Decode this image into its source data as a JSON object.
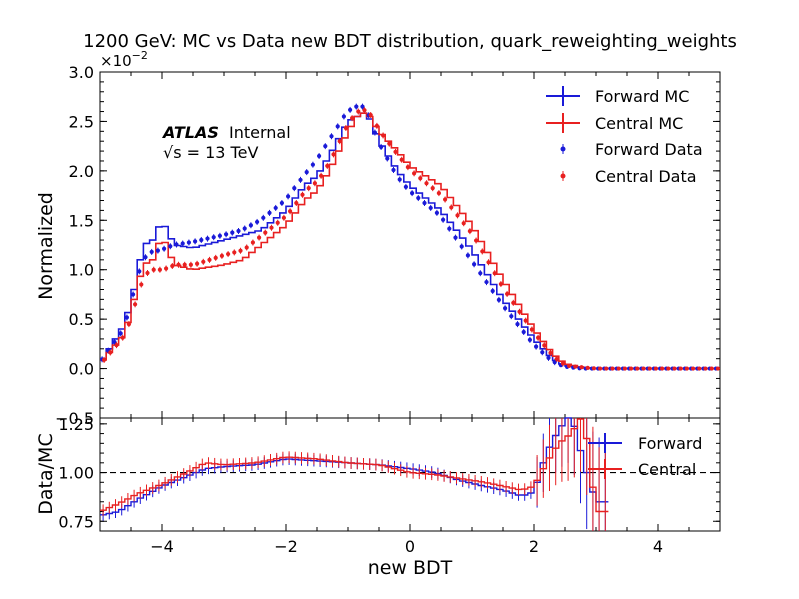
{
  "chart_data": [
    {
      "panel": "main",
      "type": "line",
      "title": "1200 GeV: MC vs Data new BDT distribution, quark_reweighting_weights",
      "ylabel": "Normalized",
      "xlim": [
        -5,
        5
      ],
      "ylim": [
        -0.5,
        3.0
      ],
      "y_scale_label": "×10",
      "y_scale_exp": "−2",
      "xticks": [
        -4,
        -2,
        0,
        2,
        4
      ],
      "yticks": [
        -0.5,
        0.0,
        0.5,
        1.0,
        1.5,
        2.0,
        2.5,
        3.0
      ],
      "ytick_labels": [
        "−0.5",
        "0.0",
        "0.5",
        "1.0",
        "1.5",
        "2.0",
        "2.5",
        "3.0"
      ],
      "annotation": {
        "experiment": "ATLAS",
        "status": "Internal",
        "energy_sqrt": "√s",
        "energy_value": " =  13 TeV"
      },
      "legend_position": "upper right",
      "legend": [
        "Forward MC",
        "Central MC",
        "Forward Data",
        "Central Data"
      ],
      "colors": {
        "forward": "#1a1ad8",
        "central": "#e82020"
      },
      "x_knots": [
        -5.0,
        -4.6,
        -4.45,
        -4.3,
        -4.15,
        -4.0,
        -3.8,
        -3.5,
        -3.0,
        -2.7,
        -2.4,
        -2.0,
        -1.7,
        -1.5,
        -1.3,
        -1.0,
        -0.85,
        -0.7,
        -0.5,
        -0.2,
        0.0,
        0.5,
        1.0,
        1.5,
        2.0,
        2.3,
        2.5,
        2.8,
        3.0,
        4.0,
        5.0
      ],
      "series": [
        {
          "name": "Forward MC",
          "values": [
            0.05,
            0.45,
            0.8,
            1.25,
            1.3,
            1.5,
            1.25,
            1.22,
            1.3,
            1.35,
            1.4,
            1.6,
            1.85,
            1.95,
            2.15,
            2.5,
            2.55,
            2.6,
            2.3,
            2.0,
            1.85,
            1.6,
            1.2,
            0.7,
            0.3,
            0.1,
            0.03,
            0.01,
            0.0,
            0.0,
            0.0
          ]
        },
        {
          "name": "Central MC",
          "values": [
            0.05,
            0.35,
            0.7,
            1.05,
            1.1,
            1.35,
            1.05,
            1.0,
            1.05,
            1.1,
            1.25,
            1.45,
            1.7,
            1.8,
            2.0,
            2.4,
            2.55,
            2.6,
            2.4,
            2.2,
            2.05,
            1.85,
            1.45,
            0.9,
            0.4,
            0.15,
            0.05,
            0.01,
            0.0,
            0.0,
            0.0
          ]
        },
        {
          "name": "Forward Data",
          "values": [
            0.05,
            0.4,
            0.75,
            1.1,
            1.18,
            1.2,
            1.25,
            1.28,
            1.35,
            1.4,
            1.5,
            1.7,
            1.95,
            2.1,
            2.3,
            2.6,
            2.65,
            2.65,
            2.3,
            1.95,
            1.8,
            1.55,
            1.1,
            0.65,
            0.25,
            0.08,
            0.02,
            0.0,
            0.0,
            0.0,
            0.0
          ]
        },
        {
          "name": "Central Data",
          "values": [
            0.05,
            0.35,
            0.65,
            0.95,
            1.0,
            1.0,
            1.05,
            1.05,
            1.15,
            1.2,
            1.35,
            1.55,
            1.8,
            1.9,
            2.1,
            2.5,
            2.6,
            2.62,
            2.4,
            2.15,
            2.0,
            1.75,
            1.35,
            0.8,
            0.35,
            0.12,
            0.03,
            0.01,
            0.0,
            0.0,
            0.0
          ]
        }
      ]
    },
    {
      "panel": "ratio",
      "type": "line",
      "xlabel": "new BDT",
      "ylabel": "Data/MC",
      "xlim": [
        -5,
        5
      ],
      "ylim": [
        0.7,
        1.28
      ],
      "xticks": [
        -4,
        -2,
        0,
        2,
        4
      ],
      "yticks": [
        0.75,
        1.0,
        1.25
      ],
      "ytick_labels": [
        "0.75",
        "1.00",
        "1.25"
      ],
      "reference_line": 1.0,
      "legend_position": "upper right",
      "legend": [
        "Forward",
        "Central"
      ],
      "x_knots": [
        -5.0,
        -4.7,
        -4.4,
        -4.0,
        -3.6,
        -3.3,
        -3.0,
        -2.5,
        -2.0,
        -1.5,
        -1.0,
        -0.5,
        0.0,
        0.4,
        0.8,
        1.2,
        1.5,
        1.8,
        2.0,
        2.2,
        2.4,
        2.6,
        2.8,
        3.0
      ],
      "series": [
        {
          "name": "Forward",
          "values": [
            0.78,
            0.8,
            0.86,
            0.93,
            0.98,
            1.02,
            1.03,
            1.04,
            1.07,
            1.06,
            1.05,
            1.04,
            1.02,
            1.0,
            0.96,
            0.93,
            0.91,
            0.88,
            0.9,
            1.1,
            1.22,
            1.3,
            1.05,
            0.85
          ]
        },
        {
          "name": "Central",
          "values": [
            0.8,
            0.84,
            0.89,
            0.94,
            1.0,
            1.05,
            1.04,
            1.05,
            1.08,
            1.07,
            1.05,
            1.04,
            1.0,
            0.99,
            0.97,
            0.95,
            0.93,
            0.91,
            0.93,
            1.05,
            1.15,
            1.2,
            1.3,
            0.8
          ]
        }
      ]
    }
  ]
}
